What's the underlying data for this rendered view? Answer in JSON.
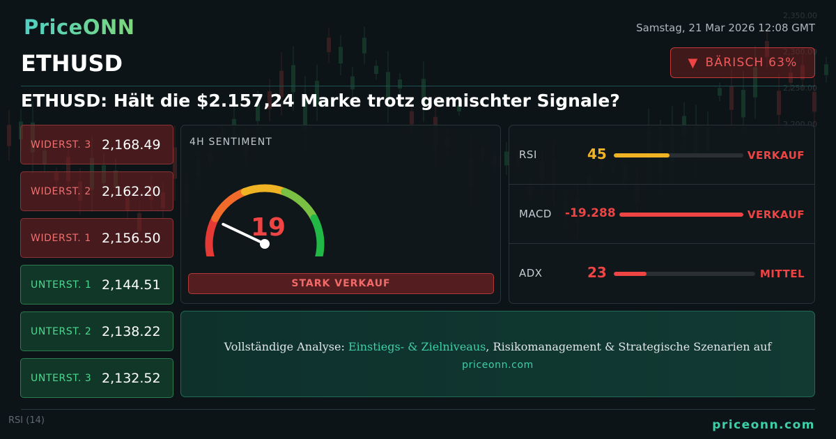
{
  "brand": {
    "logo_text": "PriceONN"
  },
  "header": {
    "datetime": "Samstag, 21 Mar 2026 12:08 GMT",
    "symbol": "ETHUSD",
    "badge": {
      "icon": "triangle-down-icon",
      "label": "BÄRISCH 63%"
    },
    "headline": "ETHUSD: Hält die $2.157,24 Marke trotz gemischter Signale?"
  },
  "levels": [
    {
      "type": "resistance",
      "label": "WIDERST. 3",
      "value": "2,168.49"
    },
    {
      "type": "resistance",
      "label": "WIDERST. 2",
      "value": "2,162.20"
    },
    {
      "type": "resistance",
      "label": "WIDERST. 1",
      "value": "2,156.50"
    },
    {
      "type": "support",
      "label": "UNTERST. 1",
      "value": "2,144.51"
    },
    {
      "type": "support",
      "label": "UNTERST. 2",
      "value": "2,138.22"
    },
    {
      "type": "support",
      "label": "UNTERST. 3",
      "value": "2,132.52"
    }
  ],
  "sentiment": {
    "title": "4H SENTIMENT",
    "value": "19",
    "value_max": 100,
    "signal": "STARK VERKAUF",
    "gauge_colors": [
      "#e53935",
      "#f26b2a",
      "#f0b323",
      "#7ac143",
      "#22b845"
    ]
  },
  "indicators": [
    {
      "name": "RSI",
      "value": "45",
      "level": 0.43,
      "signal": "VERKAUF",
      "value_color": "#f0b323",
      "bar_color": "#f0b323",
      "signal_color": "#ef4444"
    },
    {
      "name": "MACD",
      "value": "-19.288",
      "level": 1.0,
      "signal": "VERKAUF",
      "value_color": "#ef4444",
      "bar_color": "#ef4444",
      "signal_color": "#ef4444"
    },
    {
      "name": "ADX",
      "value": "23",
      "level": 0.23,
      "signal": "MITTEL",
      "value_color": "#ef4444",
      "bar_color": "#ef4444",
      "signal_color": "#ef4444"
    }
  ],
  "cta": {
    "prefix": "Vollständige Analyse: ",
    "highlight": "Einstiegs- & Zielniveaus",
    "suffix": ", Risikomanagement & Strategische Szenarien auf",
    "url": "priceonn.com"
  },
  "background_chart": {
    "price_ticks": [
      "2,350.00",
      "2,300.00",
      "2,250.00",
      "2,200.00"
    ],
    "indicator_label": "RSI",
    "indicator_period": "(14)"
  },
  "footer": {
    "url": "priceonn.com"
  },
  "colors": {
    "accent": "#3fcfa8",
    "bearish": "#ef4444",
    "bullish": "#4fd890"
  }
}
